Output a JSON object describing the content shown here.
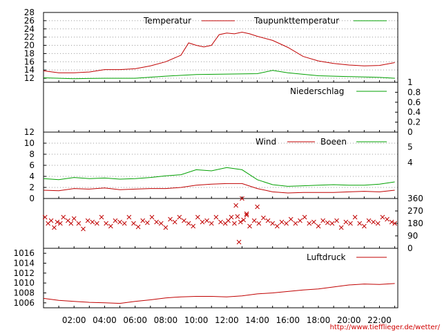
{
  "footer_url": "http://www.tiefflieger.de/wetter/",
  "colors": {
    "red": "#c00000",
    "green": "#00a000",
    "grid": "#999999",
    "axis": "#000000"
  },
  "chart_data": [
    {
      "type": "line",
      "id": "temperature",
      "ylim": [
        11,
        28
      ],
      "yticks": [
        12,
        14,
        16,
        18,
        20,
        22,
        24,
        26,
        28
      ],
      "grid": true,
      "legend": "top",
      "series": [
        {
          "name": "Temperatur",
          "color": "red",
          "x": [
            0,
            1,
            2,
            3,
            4,
            5,
            6,
            7,
            8,
            9,
            9.5,
            10,
            10.5,
            11,
            11.5,
            12,
            12.5,
            13,
            13.5,
            14,
            15,
            16,
            17,
            18,
            19,
            20,
            21,
            22,
            23
          ],
          "y": [
            13.8,
            13.3,
            13.3,
            13.5,
            14.1,
            14.1,
            14.3,
            15.0,
            16.0,
            17.6,
            20.6,
            20.0,
            19.6,
            20.0,
            22.6,
            23.0,
            22.8,
            23.2,
            22.8,
            22.2,
            21.2,
            19.5,
            17.3,
            16.2,
            15.6,
            15.2,
            15.0,
            15.1,
            15.8
          ]
        },
        {
          "name": "Taupunkttemperatur",
          "color": "green",
          "x": [
            0,
            2,
            4,
            6,
            8,
            10,
            12,
            14,
            15,
            16,
            18,
            20,
            22,
            23
          ],
          "y": [
            12.1,
            11.9,
            12.0,
            12.0,
            12.5,
            12.9,
            13.0,
            13.1,
            13.9,
            13.3,
            12.6,
            12.4,
            12.2,
            12.0
          ]
        }
      ]
    },
    {
      "type": "line",
      "id": "precipitation",
      "ylim": [
        0,
        1
      ],
      "yticks": [
        0,
        0.2,
        0.4,
        0.6,
        0.8,
        1
      ],
      "grid": false,
      "legend": "top-right",
      "series": [
        {
          "name": "Niederschlag",
          "color": "green",
          "x": [
            0,
            23
          ],
          "y": [
            0,
            0
          ]
        }
      ]
    },
    {
      "type": "line",
      "id": "wind",
      "ylim": [
        0,
        12
      ],
      "yticks": [
        0,
        2,
        4,
        6,
        8,
        10,
        12
      ],
      "bft_ticks": [
        {
          "label": "4",
          "value": 6.5
        },
        {
          "label": "5",
          "value": 9.3
        }
      ],
      "grid": true,
      "legend": "top",
      "series": [
        {
          "name": "Wind",
          "color": "red",
          "x": [
            0,
            1,
            2,
            3,
            4,
            5,
            6,
            7,
            8,
            9,
            10,
            11,
            12,
            13,
            14,
            15,
            16,
            17,
            18,
            19,
            20,
            21,
            22,
            23
          ],
          "y": [
            1.5,
            1.4,
            1.8,
            1.7,
            1.9,
            1.6,
            1.7,
            1.8,
            1.8,
            2.0,
            2.4,
            2.6,
            2.7,
            2.7,
            1.8,
            1.2,
            1.0,
            1.1,
            1.1,
            1.1,
            1.2,
            1.3,
            1.2,
            1.5
          ]
        },
        {
          "name": "Boeen",
          "color": "green",
          "x": [
            0,
            1,
            2,
            3,
            4,
            5,
            6,
            7,
            8,
            9,
            10,
            11,
            12,
            13,
            14,
            15,
            16,
            17,
            18,
            19,
            20,
            21,
            22,
            23
          ],
          "y": [
            3.6,
            3.4,
            3.8,
            3.6,
            3.7,
            3.5,
            3.6,
            3.8,
            4.1,
            4.3,
            5.2,
            5.0,
            5.6,
            5.2,
            3.4,
            2.5,
            2.2,
            2.3,
            2.4,
            2.5,
            2.4,
            2.4,
            2.6,
            3.0
          ]
        }
      ]
    },
    {
      "type": "scatter",
      "id": "wind_direction",
      "ylim": [
        0,
        360
      ],
      "yticks": [
        0,
        90,
        180,
        270,
        360
      ],
      "grid": false,
      "series": [
        {
          "color": "red",
          "x": [
            0.1,
            0.3,
            0.5,
            0.7,
            0.9,
            1.1,
            1.3,
            1.6,
            1.8,
            2.0,
            2.3,
            2.6,
            2.9,
            3.2,
            3.5,
            3.8,
            4.1,
            4.4,
            4.7,
            5.0,
            5.3,
            5.6,
            5.9,
            6.2,
            6.5,
            6.8,
            7.1,
            7.4,
            7.7,
            8.0,
            8.3,
            8.6,
            8.9,
            9.2,
            9.5,
            9.8,
            10.1,
            10.4,
            10.7,
            11.0,
            11.3,
            11.6,
            11.9,
            12.1,
            12.3,
            12.5,
            12.7,
            12.9,
            13.1,
            13.3,
            13.5,
            13.8,
            14.1,
            14.4,
            14.7,
            15.0,
            15.3,
            15.6,
            15.9,
            16.2,
            16.5,
            16.8,
            17.1,
            17.4,
            17.7,
            18.0,
            18.3,
            18.6,
            18.9,
            19.2,
            19.5,
            19.8,
            20.1,
            20.4,
            20.7,
            21.0,
            21.3,
            21.6,
            21.9,
            22.2,
            22.5,
            22.8,
            23.0,
            12.6,
            13.0,
            13.3,
            12.8,
            14.0
          ],
          "y": [
            225,
            180,
            200,
            150,
            190,
            180,
            225,
            200,
            180,
            215,
            180,
            140,
            200,
            190,
            180,
            225,
            180,
            160,
            200,
            190,
            180,
            225,
            180,
            155,
            200,
            185,
            225,
            190,
            180,
            150,
            210,
            190,
            225,
            200,
            180,
            160,
            225,
            190,
            200,
            180,
            225,
            190,
            180,
            200,
            225,
            180,
            230,
            190,
            205,
            240,
            160,
            200,
            180,
            220,
            200,
            180,
            160,
            190,
            180,
            210,
            180,
            200,
            225,
            180,
            190,
            160,
            200,
            185,
            180,
            200,
            150,
            190,
            180,
            225,
            180,
            160,
            200,
            190,
            180,
            225,
            210,
            190,
            180,
            310,
            360,
            250,
            45,
            300
          ]
        }
      ]
    },
    {
      "type": "line",
      "id": "pressure",
      "ylim": [
        1005,
        1017
      ],
      "yticks": [
        1006,
        1008,
        1010,
        1012,
        1014,
        1016
      ],
      "grid": false,
      "legend": "top-right",
      "series": [
        {
          "name": "Luftdruck",
          "color": "red",
          "x": [
            0,
            1,
            2,
            3,
            4,
            5,
            6,
            7,
            8,
            9,
            10,
            11,
            12,
            13,
            14,
            15,
            16,
            17,
            18,
            19,
            20,
            21,
            22,
            23
          ],
          "y": [
            1006.9,
            1006.5,
            1006.3,
            1006.1,
            1006.0,
            1005.9,
            1006.3,
            1006.6,
            1007.0,
            1007.2,
            1007.3,
            1007.3,
            1007.2,
            1007.4,
            1007.8,
            1008.0,
            1008.3,
            1008.6,
            1008.8,
            1009.2,
            1009.6,
            1009.8,
            1009.7,
            1009.9
          ]
        }
      ],
      "x_ticks": [
        "02:00",
        "04:00",
        "06:00",
        "08:00",
        "10:00",
        "12:00",
        "14:00",
        "16:00",
        "18:00",
        "20:00",
        "22:00"
      ],
      "x_tick_values": [
        2,
        4,
        6,
        8,
        10,
        12,
        14,
        16,
        18,
        20,
        22
      ]
    }
  ]
}
